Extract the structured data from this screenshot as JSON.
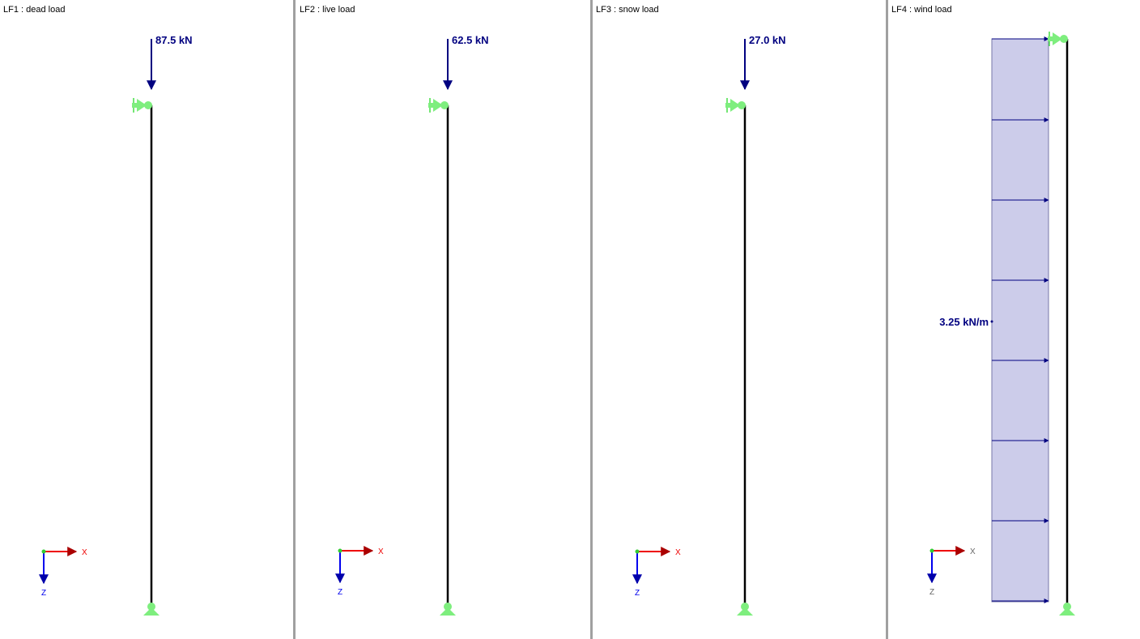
{
  "panels": [
    {
      "title": "LF1 : dead load",
      "load_label": "87.5 kN",
      "load_type": "point"
    },
    {
      "title": "LF2 : live load",
      "load_label": "62.5 kN",
      "load_type": "point"
    },
    {
      "title": "LF3 : snow load",
      "load_label": "27.0 kN",
      "load_type": "point"
    },
    {
      "title": "LF4 : wind load",
      "load_label": "3.25 kN/m",
      "load_type": "distributed"
    }
  ],
  "axes": {
    "x_label": "X",
    "z_label": "Z"
  },
  "colors": {
    "load": "#000080",
    "support": "#66ee66",
    "member": "#000000",
    "x_axis": "#ee0000",
    "z_axis": "#0000ee",
    "distributed_fill": "#ccccea",
    "divider": "#a0a0a0"
  }
}
